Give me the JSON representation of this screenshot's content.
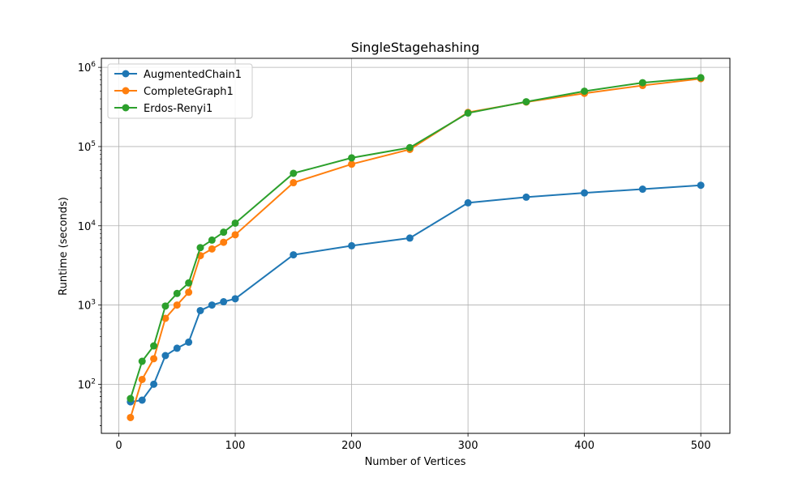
{
  "chart_data": {
    "type": "line",
    "title": "SingleStagehashing",
    "xlabel": "Number of Vertices",
    "ylabel": "Runtime (seconds)",
    "xlim": [
      -15,
      525
    ],
    "ylim": [
      24,
      1300000
    ],
    "yscale": "log",
    "grid": true,
    "legend_position": "top-left",
    "x_ticks": [
      0,
      100,
      200,
      300,
      400,
      500
    ],
    "y_ticks": [
      {
        "value": 100,
        "base": "10",
        "exp": "2"
      },
      {
        "value": 1000,
        "base": "10",
        "exp": "3"
      },
      {
        "value": 10000,
        "base": "10",
        "exp": "4"
      },
      {
        "value": 100000,
        "base": "10",
        "exp": "5"
      },
      {
        "value": 1000000,
        "base": "10",
        "exp": "6"
      }
    ],
    "x": [
      10,
      20,
      30,
      40,
      50,
      60,
      70,
      80,
      90,
      100,
      150,
      200,
      250,
      300,
      350,
      400,
      450,
      500
    ],
    "series": [
      {
        "name": "AugmentedChain1",
        "color": "#1f77b4",
        "values": [
          60,
          63,
          100,
          230,
          285,
          340,
          850,
          1000,
          1100,
          1200,
          4300,
          5600,
          7000,
          19500,
          23000,
          26000,
          29000,
          32500
        ]
      },
      {
        "name": "CompleteGraph1",
        "color": "#ff7f0e",
        "values": [
          38,
          115,
          210,
          680,
          1000,
          1450,
          4200,
          5100,
          6200,
          7700,
          35000,
          60000,
          92000,
          270000,
          365000,
          470000,
          590000,
          720000
        ]
      },
      {
        "name": "Erdos-Renyi1",
        "color": "#2ca02c",
        "values": [
          66,
          195,
          305,
          970,
          1400,
          1900,
          5300,
          6600,
          8300,
          10800,
          46000,
          72000,
          97000,
          265000,
          368000,
          500000,
          640000,
          740000
        ]
      }
    ]
  }
}
